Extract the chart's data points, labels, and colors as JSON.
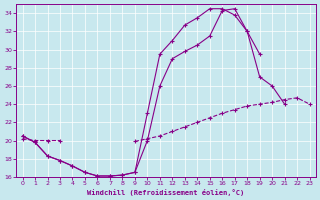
{
  "xlabel": "Windchill (Refroidissement éolien,°C)",
  "bg_color": "#c8e8ee",
  "line_color": "#880088",
  "xlim": [
    0,
    23
  ],
  "ylim": [
    16,
    35
  ],
  "yticks": [
    16,
    18,
    20,
    22,
    24,
    26,
    28,
    30,
    32,
    34
  ],
  "xticks": [
    0,
    1,
    2,
    3,
    4,
    5,
    6,
    7,
    8,
    9,
    10,
    11,
    12,
    13,
    14,
    15,
    16,
    17,
    18,
    19,
    20,
    21,
    22,
    23
  ],
  "curve1_x": [
    0,
    1,
    2,
    3,
    4,
    5,
    6,
    7,
    8,
    9,
    10,
    11,
    12,
    13,
    14,
    15,
    16,
    17,
    18,
    19,
    20,
    21
  ],
  "curve1_y": [
    20.5,
    19.8,
    18.3,
    17.8,
    17.2,
    16.5,
    16.1,
    16.1,
    16.2,
    16.5,
    23.0,
    29.5,
    31.0,
    32.7,
    33.5,
    34.5,
    34.5,
    33.8,
    32.0,
    27.0,
    26.0,
    24.0
  ],
  "curve2_x": [
    0,
    1,
    2,
    3,
    4,
    5,
    6,
    7,
    8,
    9,
    10,
    11,
    12,
    13,
    14,
    15,
    16,
    17,
    18,
    19,
    20,
    21,
    22,
    23
  ],
  "curve2_y": [
    20.5,
    19.8,
    18.3,
    17.8,
    17.2,
    16.5,
    16.1,
    16.1,
    16.2,
    16.5,
    20.0,
    26.0,
    29.0,
    29.8,
    30.5,
    31.5,
    34.3,
    34.5,
    32.0,
    29.5,
    null,
    null,
    null,
    null
  ],
  "curve3_x": [
    0,
    1,
    2,
    3,
    4,
    5,
    6,
    7,
    8,
    9,
    10,
    11,
    12,
    13,
    14,
    15,
    16,
    17,
    18,
    19,
    20,
    21,
    22,
    23
  ],
  "curve3_y": [
    20.2,
    20.0,
    20.0,
    20.0,
    null,
    null,
    null,
    null,
    null,
    19.9,
    20.2,
    20.5,
    21.0,
    21.5,
    22.0,
    22.5,
    23.0,
    23.4,
    23.8,
    24.0,
    24.2,
    24.5,
    24.7,
    24.0
  ]
}
